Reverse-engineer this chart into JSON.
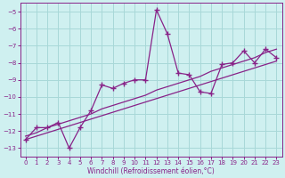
{
  "x_data": [
    0,
    1,
    2,
    3,
    4,
    5,
    6,
    7,
    8,
    9,
    10,
    11,
    12,
    13,
    14,
    15,
    16,
    17,
    18,
    19,
    20,
    21,
    22,
    23
  ],
  "y_line1": [
    -12.5,
    -11.8,
    -11.8,
    -11.5,
    -13.0,
    -11.8,
    -10.8,
    -9.3,
    -9.5,
    -9.2,
    -9.0,
    -9.0,
    -4.9,
    -6.3,
    -8.6,
    -8.7,
    -9.7,
    -9.8,
    -8.1,
    -8.0,
    -7.3,
    -8.0,
    -7.2,
    -7.7
  ],
  "y_trend1": [
    -12.3,
    -12.1,
    -11.8,
    -11.6,
    -11.4,
    -11.2,
    -11.0,
    -10.7,
    -10.5,
    -10.3,
    -10.1,
    -9.9,
    -9.6,
    -9.4,
    -9.2,
    -9.0,
    -8.8,
    -8.5,
    -8.3,
    -8.1,
    -7.9,
    -7.7,
    -7.4,
    -7.2
  ],
  "y_trend2": [
    -12.5,
    -12.3,
    -12.1,
    -11.9,
    -11.7,
    -11.5,
    -11.3,
    -11.1,
    -10.9,
    -10.7,
    -10.5,
    -10.3,
    -10.1,
    -9.9,
    -9.7,
    -9.5,
    -9.3,
    -9.1,
    -8.9,
    -8.7,
    -8.5,
    -8.3,
    -8.1,
    -7.9
  ],
  "line_color": "#882288",
  "bg_color": "#cff0f0",
  "grid_color": "#a8d8d8",
  "xlabel": "Windchill (Refroidissement éolien,°C)",
  "ylim": [
    -13.5,
    -4.5
  ],
  "xlim": [
    -0.5,
    23.5
  ],
  "yticks": [
    -5,
    -6,
    -7,
    -8,
    -9,
    -10,
    -11,
    -12,
    -13
  ],
  "xticks": [
    0,
    1,
    2,
    3,
    4,
    5,
    6,
    7,
    8,
    9,
    10,
    11,
    12,
    13,
    14,
    15,
    16,
    17,
    18,
    19,
    20,
    21,
    22,
    23
  ]
}
